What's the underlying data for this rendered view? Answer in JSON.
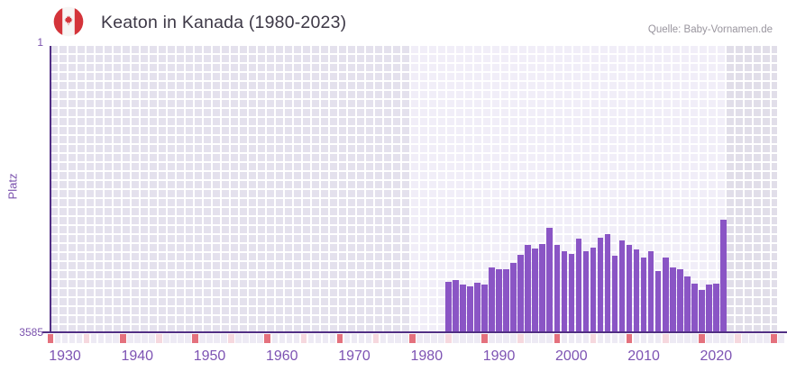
{
  "header": {
    "flag_icon": "canada-flag",
    "title": "Keaton in Kanada (1980-2023)",
    "source": "Quelle: Baby-Vornamen.de"
  },
  "axes": {
    "y_label": "Platz",
    "y_top_tick": "1",
    "y_bottom_tick": "3585",
    "x_ticks": [
      "1930",
      "1940",
      "1950",
      "1960",
      "1970",
      "1980",
      "1990",
      "2000",
      "2010",
      "2020"
    ]
  },
  "colors": {
    "bar": "#8a55c5",
    "axis_line": "#512f84",
    "x_tick_label": "#7d53b3",
    "y_tick_label": "#7a51ad",
    "strip_cell": "#edeaf4",
    "strip_half_decade": "#f6d8de",
    "strip_decade": "#e4717d",
    "region_outside": "#e4e1ed",
    "region_highlight": "#f1eef8",
    "title_text": "#3d3846",
    "source_text": "#99959e",
    "flag_red": "#d4343a"
  },
  "chart_data": {
    "type": "bar",
    "title": "Keaton in Kanada (1980-2023)",
    "xlabel": "",
    "ylabel": "Platz",
    "y_axis": {
      "min": 1,
      "max": 3585,
      "inverted": true,
      "note": "rank 1 at top, bars rise from bottom; taller bar = better rank"
    },
    "x_axis": {
      "min": 1930,
      "max": 2030,
      "tick_interval": 10
    },
    "highlight_range": [
      1980,
      2023
    ],
    "grid": true,
    "legend": false,
    "years": [
      1985,
      1986,
      1987,
      1988,
      1989,
      1990,
      1991,
      1992,
      1993,
      1994,
      1995,
      1996,
      1997,
      1998,
      1999,
      2000,
      2001,
      2002,
      2003,
      2004,
      2005,
      2006,
      2007,
      2008,
      2009,
      2010,
      2011,
      2012,
      2013,
      2014,
      2015,
      2016,
      2017,
      2018,
      2019,
      2020,
      2021,
      2022,
      2023
    ],
    "ranks": [
      2950,
      2930,
      2990,
      3010,
      2970,
      2990,
      2770,
      2795,
      2795,
      2715,
      2610,
      2495,
      2535,
      2485,
      2275,
      2495,
      2565,
      2605,
      2415,
      2575,
      2520,
      2405,
      2355,
      2625,
      2430,
      2495,
      2545,
      2645,
      2565,
      2815,
      2645,
      2770,
      2795,
      2885,
      2980,
      3060,
      2990,
      2975,
      2175
    ]
  }
}
